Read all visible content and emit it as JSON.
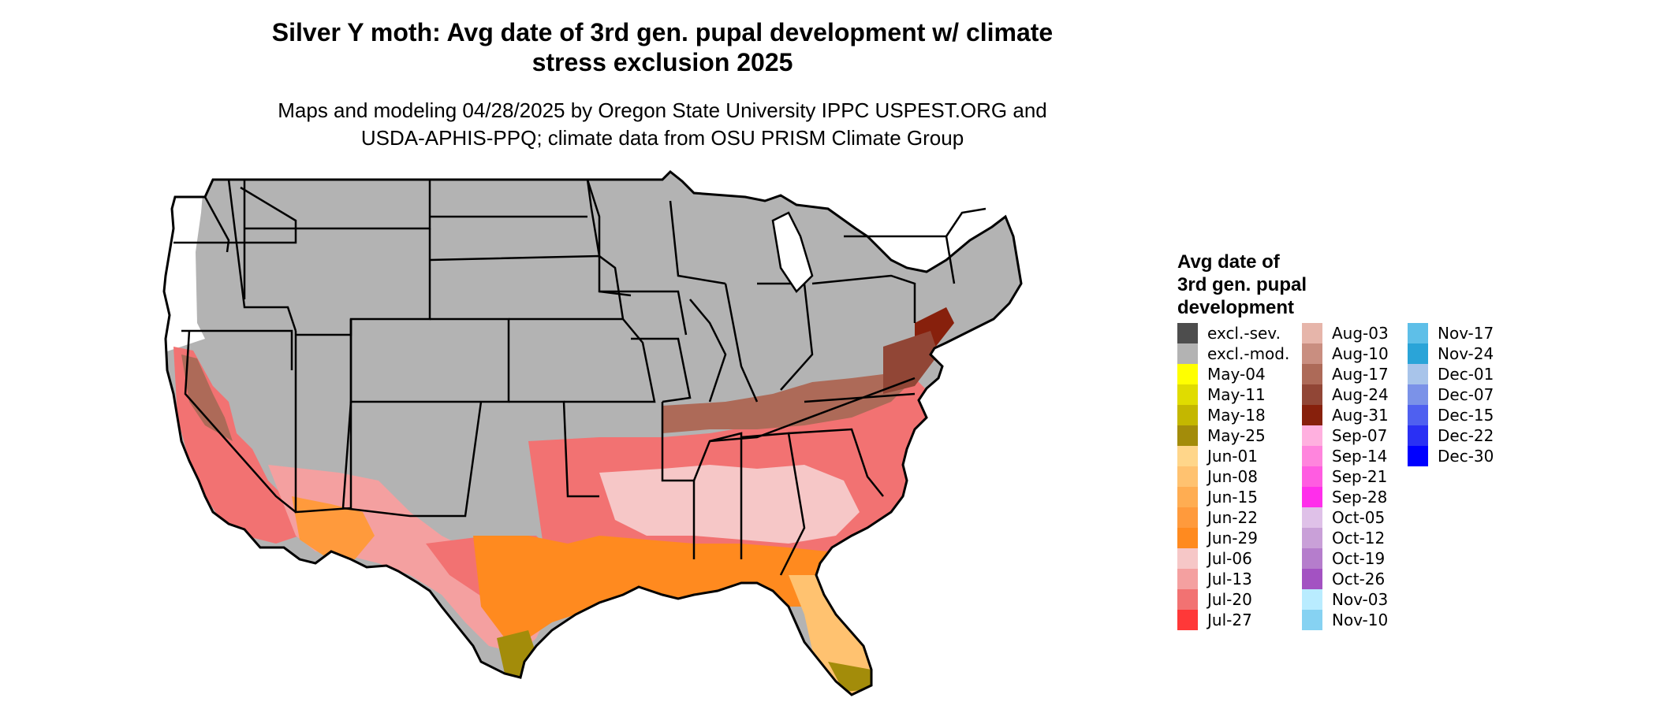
{
  "title": {
    "line1": "Silver Y moth: Avg date of 3rd gen. pupal development w/ climate",
    "line2": "stress exclusion 2025"
  },
  "subtitle": {
    "line1": "Maps and modeling 04/28/2025 by Oregon State University IPPC USPEST.ORG and",
    "line2": "USDA-APHIS-PPQ; climate data from OSU PRISM Climate Group"
  },
  "legend": {
    "title_lines": [
      "Avg date of",
      "3rd gen. pupal",
      "development"
    ],
    "columns": [
      [
        {
          "label": "excl.-sev.",
          "color": "#4d4d4d"
        },
        {
          "label": "excl.-mod.",
          "color": "#b3b3b3"
        },
        {
          "label": "May-04",
          "color": "#ffff00"
        },
        {
          "label": "May-11",
          "color": "#e0dc00"
        },
        {
          "label": "May-18",
          "color": "#c4b700"
        },
        {
          "label": "May-25",
          "color": "#a38c0a"
        },
        {
          "label": "Jun-01",
          "color": "#ffd68a"
        },
        {
          "label": "Jun-08",
          "color": "#ffc270"
        },
        {
          "label": "Jun-15",
          "color": "#ffad52"
        },
        {
          "label": "Jun-22",
          "color": "#ff9a3c"
        },
        {
          "label": "Jun-29",
          "color": "#ff8a1f"
        },
        {
          "label": "Jul-06",
          "color": "#f6c7c7"
        },
        {
          "label": "Jul-13",
          "color": "#f4a0a0"
        },
        {
          "label": "Jul-20",
          "color": "#f27272"
        },
        {
          "label": "Jul-27",
          "color": "#ff3838"
        }
      ],
      [
        {
          "label": "Aug-03",
          "color": "#e6b5aa"
        },
        {
          "label": "Aug-10",
          "color": "#c98e80"
        },
        {
          "label": "Aug-17",
          "color": "#ad6a58"
        },
        {
          "label": "Aug-24",
          "color": "#914636"
        },
        {
          "label": "Aug-31",
          "color": "#87200c"
        },
        {
          "label": "Sep-07",
          "color": "#ffb0df"
        },
        {
          "label": "Sep-14",
          "color": "#ff85dd"
        },
        {
          "label": "Sep-21",
          "color": "#ff5ce1"
        },
        {
          "label": "Sep-28",
          "color": "#ff2eeb"
        },
        {
          "label": "Oct-05",
          "color": "#dfc1e8"
        },
        {
          "label": "Oct-12",
          "color": "#c9a0d8"
        },
        {
          "label": "Oct-19",
          "color": "#b57dcc"
        },
        {
          "label": "Oct-26",
          "color": "#a352c2"
        },
        {
          "label": "Nov-03",
          "color": "#b9ecff"
        },
        {
          "label": "Nov-10",
          "color": "#86d2f2"
        }
      ],
      [
        {
          "label": "Nov-17",
          "color": "#5ebfe8"
        },
        {
          "label": "Nov-24",
          "color": "#2aa4d8"
        },
        {
          "label": "Dec-01",
          "color": "#a8c4ea"
        },
        {
          "label": "Dec-07",
          "color": "#7b92e8"
        },
        {
          "label": "Dec-15",
          "color": "#4f60f0"
        },
        {
          "label": "Dec-22",
          "color": "#2a30f4"
        },
        {
          "label": "Dec-30",
          "color": "#0000ff"
        }
      ]
    ]
  },
  "map": {
    "excluded_color": "#b3b3b3",
    "border_color": "#000000"
  }
}
